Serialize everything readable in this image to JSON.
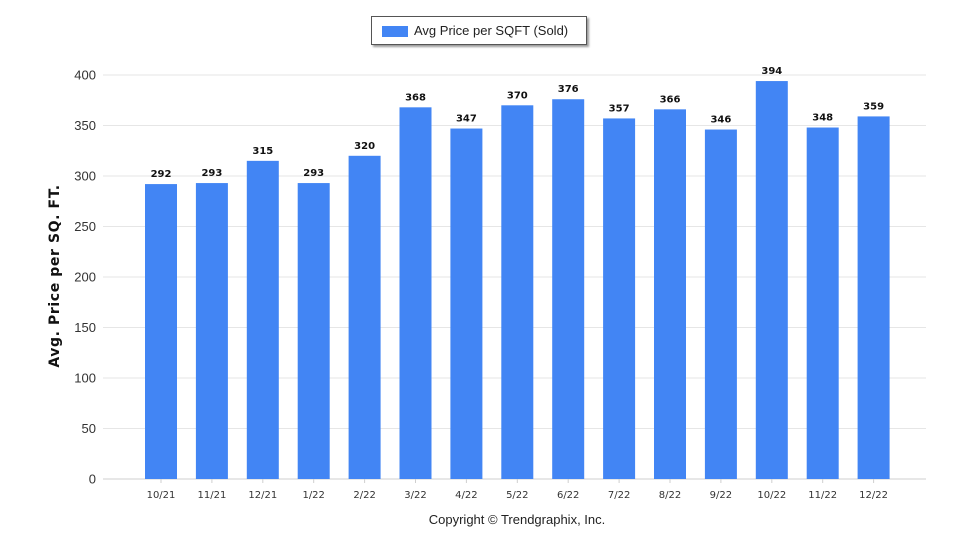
{
  "chart_data": {
    "type": "bar",
    "categories": [
      "10/21",
      "11/21",
      "12/21",
      "1/22",
      "2/22",
      "3/22",
      "4/22",
      "5/22",
      "6/22",
      "7/22",
      "8/22",
      "9/22",
      "10/22",
      "11/22",
      "12/22"
    ],
    "series": [
      {
        "name": "Avg Price per SQFT (Sold)",
        "values": [
          292,
          293,
          315,
          293,
          320,
          368,
          347,
          370,
          376,
          357,
          366,
          346,
          394,
          348,
          359
        ],
        "color": "#4285f4"
      }
    ],
    "xlabel": "",
    "ylabel": "Avg. Price per SQ. FT.",
    "ylim": [
      0,
      400
    ],
    "yticks": [
      0,
      50,
      100,
      150,
      200,
      250,
      300,
      350,
      400
    ],
    "data_labels": true,
    "grid": true,
    "legend_position": "top-center"
  },
  "footer": {
    "copyright": "Copyright © Trendgraphix, Inc."
  }
}
